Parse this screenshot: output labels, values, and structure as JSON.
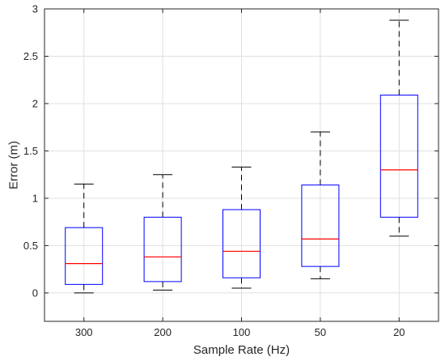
{
  "chart_data": {
    "type": "box",
    "categories": [
      "300",
      "200",
      "100",
      "50",
      "20"
    ],
    "boxes": [
      {
        "min": 0.0,
        "q1": 0.09,
        "median": 0.31,
        "q3": 0.69,
        "max": 1.15
      },
      {
        "min": 0.03,
        "q1": 0.12,
        "median": 0.38,
        "q3": 0.8,
        "max": 1.25
      },
      {
        "min": 0.05,
        "q1": 0.16,
        "median": 0.44,
        "q3": 0.88,
        "max": 1.33
      },
      {
        "min": 0.15,
        "q1": 0.28,
        "median": 0.57,
        "q3": 1.14,
        "max": 1.7
      },
      {
        "min": 0.6,
        "q1": 0.8,
        "median": 1.3,
        "q3": 2.09,
        "max": 2.88
      }
    ],
    "xlabel": "Sample Rate (Hz)",
    "ylabel": "Error (m)",
    "ylim": [
      -0.3,
      3.0
    ],
    "yticks": [
      "0",
      "0.5",
      "1",
      "1.5",
      "2",
      "2.5",
      "3"
    ],
    "grid": true,
    "colors": {
      "box": "#0000ff",
      "median": "#ff0000",
      "whisker": "#000000",
      "grid": "#e0e0e0",
      "axes": "#262626"
    }
  }
}
